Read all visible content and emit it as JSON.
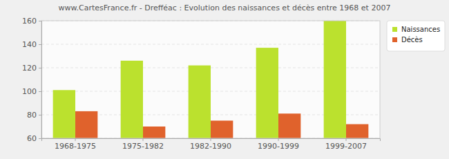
{
  "chart_data": {
    "type": "bar",
    "title": "www.CartesFrance.fr - Drefféac : Evolution des naissances et décès entre 1968 et 2007",
    "categories": [
      "1968-1975",
      "1975-1982",
      "1982-1990",
      "1990-1999",
      "1999-2007"
    ],
    "series": [
      {
        "name": "Naissances",
        "color": "#bbe12e",
        "values": [
          101,
          126,
          122,
          137,
          160
        ]
      },
      {
        "name": "Décès",
        "color": "#e0622c",
        "values": [
          83,
          70,
          75,
          81,
          72
        ]
      }
    ],
    "ylim": [
      60,
      160
    ],
    "yticks": [
      60,
      80,
      100,
      120,
      140,
      160
    ],
    "grid": true,
    "legend": "top-right"
  }
}
